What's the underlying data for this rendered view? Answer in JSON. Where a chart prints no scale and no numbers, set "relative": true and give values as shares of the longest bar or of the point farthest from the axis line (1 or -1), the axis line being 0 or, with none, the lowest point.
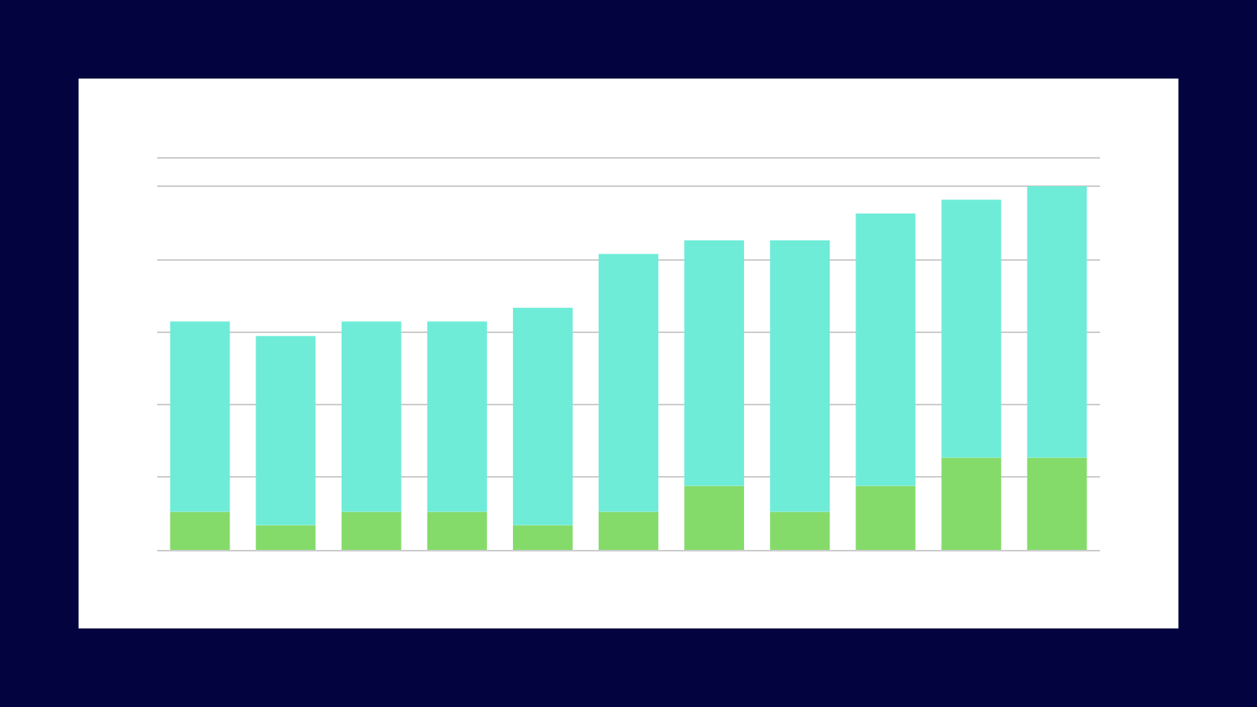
{
  "chart_data": {
    "type": "bar",
    "relative": true,
    "stacked": true,
    "grid": "y",
    "categories": [
      null,
      null,
      null,
      null,
      null,
      null,
      null,
      null,
      null,
      null,
      null
    ],
    "series": [
      {
        "color": "#84db6a",
        "values": [
          0.105,
          0.068,
          0.105,
          0.105,
          0.068,
          0.105,
          0.176,
          0.105,
          0.176,
          0.254,
          0.254
        ]
      },
      {
        "color": "#6eecd8",
        "values": [
          0.523,
          0.52,
          0.523,
          0.523,
          0.598,
          0.709,
          0.675,
          0.746,
          0.749,
          0.709,
          0.746
        ]
      }
    ]
  }
}
